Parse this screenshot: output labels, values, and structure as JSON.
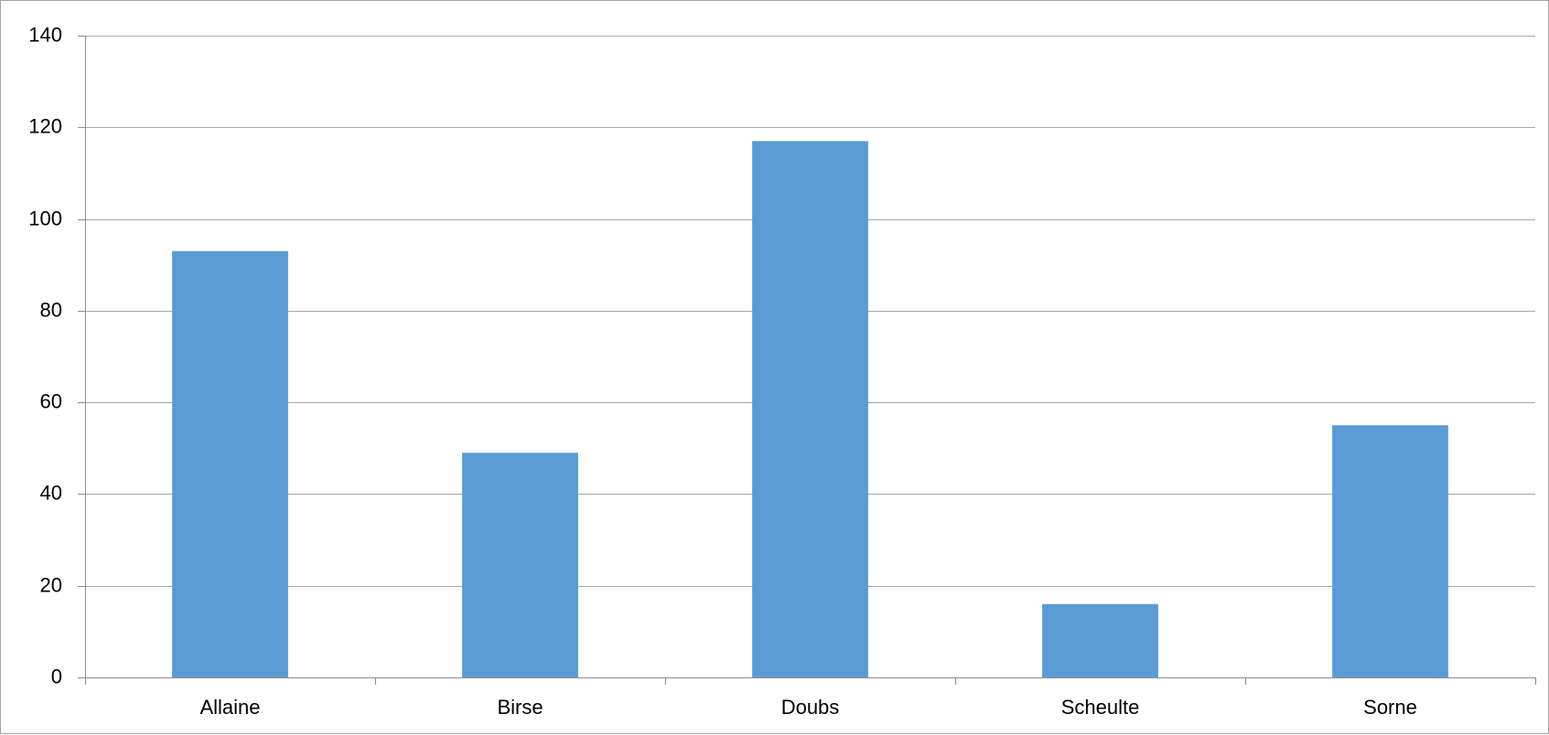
{
  "chart_data": {
    "type": "bar",
    "title": "",
    "xlabel": "",
    "ylabel": "",
    "categories": [
      "Allaine",
      "Birse",
      "Doubs",
      "Scheulte",
      "Sorne"
    ],
    "values": [
      93,
      49,
      117,
      16,
      55
    ],
    "ylim": [
      0,
      140
    ],
    "yticks": [
      0,
      20,
      40,
      60,
      80,
      100,
      120,
      140
    ],
    "grid": true,
    "legend": "none",
    "bar_color": "#5b9bd5",
    "grid_color": "#a6a6a6"
  }
}
